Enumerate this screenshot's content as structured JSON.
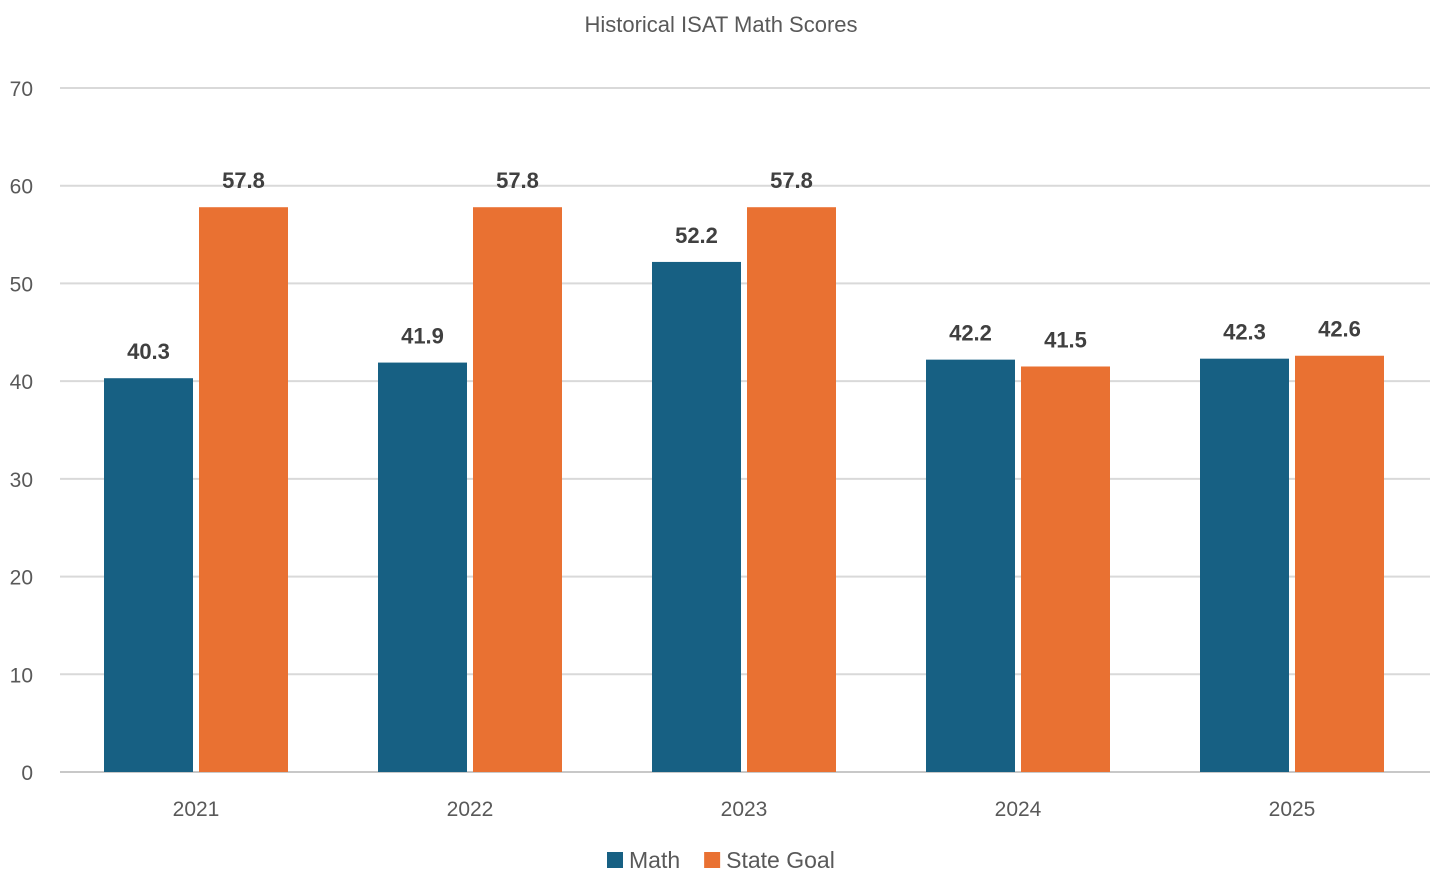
{
  "chart_data": {
    "type": "bar",
    "title": "Historical ISAT Math Scores",
    "xlabel": "",
    "ylabel": "",
    "categories": [
      "2021",
      "2022",
      "2023",
      "2024",
      "2025"
    ],
    "series": [
      {
        "name": "Math",
        "color": "#176083",
        "values": [
          40.3,
          41.9,
          52.2,
          42.2,
          42.3
        ]
      },
      {
        "name": "State Goal",
        "color": "#e97132",
        "values": [
          57.8,
          57.8,
          57.8,
          41.5,
          42.6
        ]
      }
    ],
    "ylim": [
      0,
      70
    ],
    "yticks": [
      0,
      10,
      20,
      30,
      40,
      50,
      60,
      70
    ],
    "grid": true,
    "legend": "bottom",
    "data_labels": true
  }
}
